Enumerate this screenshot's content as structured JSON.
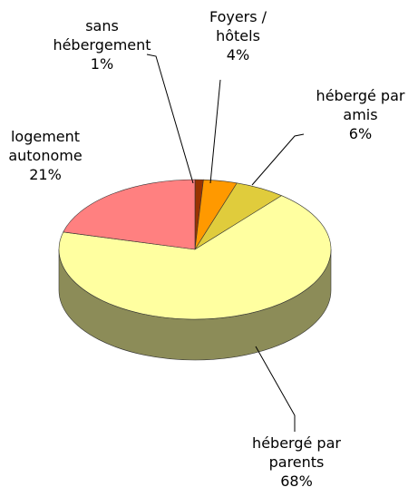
{
  "chart_data": {
    "type": "pie",
    "categories": [
      "sans hébergement",
      "Foyers / hôtels",
      "hébergé par amis",
      "hébergé par parents",
      "logement autonome"
    ],
    "values": [
      1,
      4,
      6,
      68,
      21
    ],
    "value_labels": [
      "1%",
      "4%",
      "6%",
      "68%",
      "21%"
    ],
    "colors": [
      "#993300",
      "#ff9900",
      "#e0cc3c",
      "#ffffa0",
      "#ff8080"
    ]
  }
}
